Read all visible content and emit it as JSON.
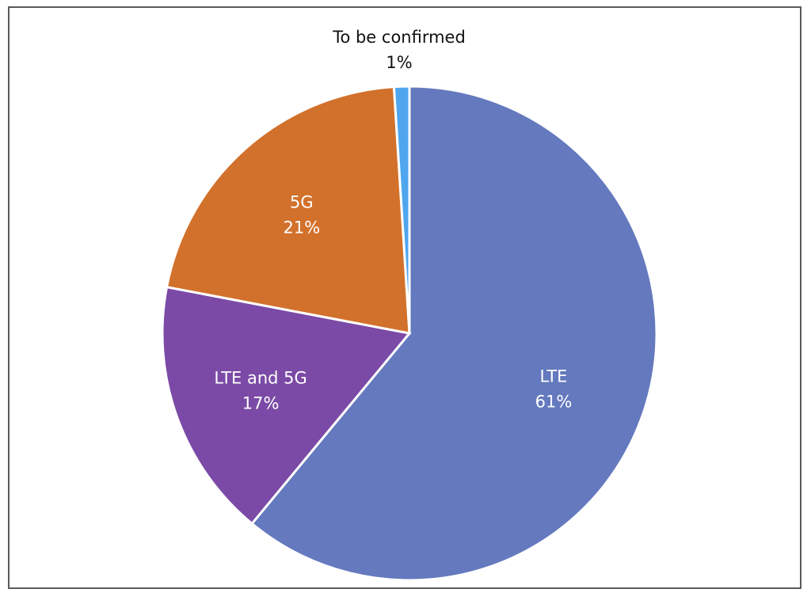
{
  "chart_data": {
    "type": "pie",
    "slices": [
      {
        "label": "LTE",
        "value": 61,
        "value_label": "61%",
        "color": "#6479BE"
      },
      {
        "label": "LTE and 5G",
        "value": 17,
        "value_label": "17%",
        "color": "#7B4AA6"
      },
      {
        "label": "5G",
        "value": 21,
        "value_label": "21%",
        "color": "#D2712C"
      },
      {
        "label": "To be confirmed",
        "value": 1,
        "value_label": "1%",
        "color": "#4FA6EE"
      }
    ],
    "start": "12 o'clock",
    "direction": "clockwise",
    "legend": "none",
    "labels": "inside (outside for smallest slice)"
  }
}
